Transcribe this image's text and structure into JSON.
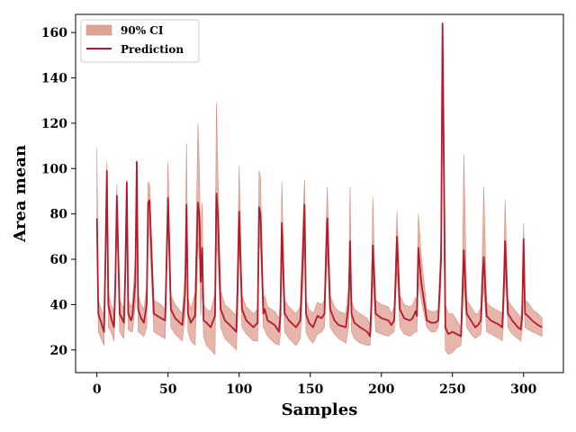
{
  "chart_data": {
    "type": "line",
    "xlabel": "Samples",
    "ylabel": "Area mean",
    "xlim": [
      -15,
      328
    ],
    "ylim": [
      10,
      168
    ],
    "xticks": [
      0,
      50,
      100,
      150,
      200,
      250,
      300
    ],
    "yticks": [
      20,
      40,
      60,
      80,
      100,
      120,
      140,
      160
    ],
    "legend_position": "top-left",
    "grid": false,
    "colors": {
      "prediction": "#b31b2b",
      "ci_fill": "#e0a497",
      "ci_edge": "#d98b7a"
    },
    "legend": {
      "ci_label": "90% CI",
      "prediction_label": "Prediction"
    },
    "series": [
      {
        "name": "Prediction",
        "x": [
          0,
          1,
          3,
          5,
          6,
          7,
          8,
          10,
          12,
          13,
          14,
          16,
          19,
          20,
          21,
          22,
          24,
          25,
          27,
          28,
          29,
          31,
          33,
          35,
          36,
          37,
          40,
          45,
          48,
          49,
          50,
          52,
          55,
          60,
          62,
          63,
          64,
          66,
          69,
          70,
          71,
          72,
          73,
          74,
          75,
          77,
          80,
          83,
          84,
          85,
          87,
          90,
          95,
          98,
          99,
          100,
          102,
          105,
          110,
          113,
          114,
          115,
          117,
          118,
          120,
          125,
          128,
          129,
          130,
          132,
          135,
          140,
          143,
          145,
          146,
          147,
          149,
          152,
          155,
          158,
          160,
          161,
          162,
          164,
          167,
          170,
          175,
          177,
          178,
          179,
          181,
          185,
          190,
          192,
          193,
          194,
          196,
          200,
          205,
          207,
          209,
          210,
          211,
          213,
          216,
          220,
          222,
          224,
          225,
          226,
          228,
          232,
          235,
          238,
          240,
          242,
          243,
          244,
          245,
          247,
          250,
          253,
          256,
          257,
          258,
          260,
          263,
          266,
          268,
          270,
          271,
          272,
          274,
          277,
          280,
          283,
          285,
          286,
          287,
          289,
          292,
          296,
          298,
          299,
          300,
          301,
          303,
          306,
          310,
          313
        ],
        "values": [
          78,
          36,
          32,
          28,
          60,
          99,
          40,
          34,
          30,
          50,
          88,
          36,
          32,
          55,
          94,
          36,
          33,
          35,
          50,
          103,
          38,
          34,
          32,
          40,
          85,
          86,
          36,
          34,
          33,
          60,
          87,
          38,
          34,
          31,
          45,
          84,
          36,
          32,
          35,
          60,
          85,
          80,
          50,
          65,
          33,
          32,
          30,
          35,
          89,
          80,
          38,
          33,
          30,
          28,
          50,
          81,
          38,
          33,
          30,
          32,
          83,
          80,
          36,
          38,
          33,
          31,
          28,
          35,
          76,
          36,
          33,
          30,
          33,
          65,
          84,
          36,
          32,
          30,
          35,
          34,
          36,
          60,
          78,
          38,
          33,
          31,
          30,
          40,
          68,
          36,
          32,
          30,
          28,
          26,
          40,
          66,
          36,
          34,
          33,
          31,
          33,
          50,
          70,
          38,
          34,
          33,
          34,
          37,
          35,
          65,
          50,
          33,
          32,
          32,
          33,
          60,
          164,
          100,
          30,
          27,
          28,
          27,
          26,
          45,
          64,
          36,
          33,
          30,
          31,
          33,
          50,
          61,
          35,
          33,
          32,
          31,
          30,
          45,
          68,
          36,
          33,
          30,
          29,
          35,
          69,
          36,
          35,
          33,
          31,
          30
        ],
        "ci_lower": [
          65,
          28,
          25,
          22,
          50,
          88,
          30,
          28,
          24,
          40,
          76,
          28,
          25,
          45,
          80,
          29,
          28,
          28,
          40,
          90,
          28,
          27,
          26,
          30,
          72,
          70,
          28,
          26,
          25,
          50,
          74,
          30,
          27,
          24,
          35,
          70,
          28,
          24,
          22,
          40,
          68,
          60,
          35,
          48,
          26,
          22,
          20,
          18,
          65,
          62,
          30,
          25,
          22,
          20,
          35,
          68,
          30,
          27,
          24,
          24,
          68,
          64,
          30,
          29,
          26,
          23,
          22,
          27,
          62,
          28,
          25,
          22,
          25,
          50,
          68,
          28,
          25,
          23,
          27,
          28,
          30,
          48,
          64,
          30,
          27,
          25,
          23,
          30,
          55,
          28,
          25,
          23,
          22,
          22,
          30,
          52,
          28,
          27,
          26,
          27,
          28,
          42,
          56,
          30,
          27,
          26,
          27,
          28,
          28,
          50,
          42,
          30,
          28,
          28,
          30,
          50,
          140,
          70,
          20,
          18,
          19,
          21,
          22,
          35,
          50,
          30,
          27,
          25,
          26,
          27,
          40,
          48,
          28,
          27,
          26,
          25,
          24,
          35,
          55,
          30,
          27,
          25,
          24,
          28,
          55,
          30,
          29,
          28,
          27,
          26
        ],
        "ci_upper": [
          109,
          42,
          38,
          35,
          75,
          103,
          46,
          40,
          37,
          62,
          93,
          42,
          38,
          68,
          95,
          42,
          39,
          41,
          62,
          103,
          44,
          40,
          38,
          48,
          94,
          93,
          42,
          40,
          38,
          72,
          103,
          44,
          40,
          36,
          55,
          111,
          43,
          38,
          45,
          80,
          120,
          100,
          66,
          85,
          40,
          38,
          37,
          45,
          129,
          100,
          46,
          40,
          37,
          35,
          65,
          101,
          44,
          39,
          36,
          38,
          99,
          96,
          42,
          44,
          39,
          37,
          34,
          42,
          94,
          42,
          39,
          36,
          39,
          80,
          95,
          42,
          38,
          36,
          41,
          40,
          42,
          72,
          92,
          44,
          39,
          37,
          36,
          48,
          92,
          42,
          38,
          36,
          34,
          31,
          48,
          87,
          42,
          40,
          39,
          36,
          39,
          62,
          81,
          44,
          40,
          39,
          40,
          43,
          41,
          80,
          62,
          38,
          37,
          37,
          38,
          72,
          164,
          116,
          40,
          36,
          36,
          33,
          30,
          55,
          106,
          42,
          39,
          36,
          36,
          39,
          62,
          92,
          41,
          39,
          38,
          37,
          36,
          55,
          86,
          42,
          39,
          36,
          34,
          42,
          76,
          42,
          41,
          38,
          36,
          34
        ]
      }
    ]
  }
}
